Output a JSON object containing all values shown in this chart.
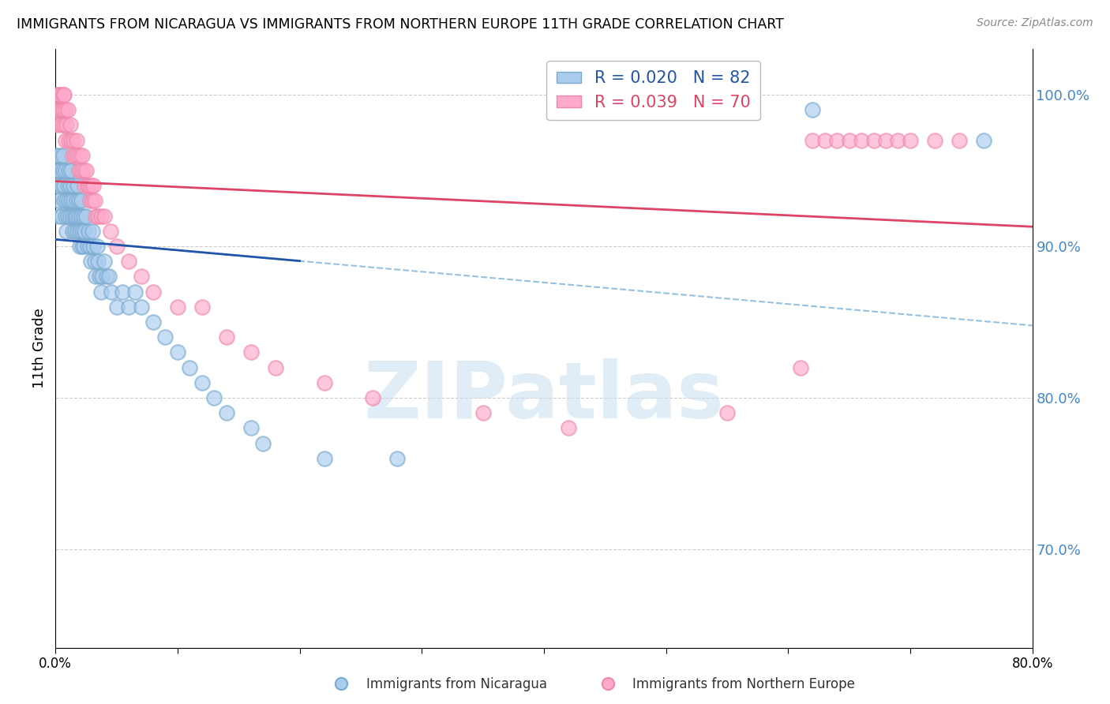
{
  "title": "IMMIGRANTS FROM NICARAGUA VS IMMIGRANTS FROM NORTHERN EUROPE 11TH GRADE CORRELATION CHART",
  "source": "Source: ZipAtlas.com",
  "ylabel": "11th Grade",
  "xlim": [
    0.0,
    0.8
  ],
  "ylim": [
    0.635,
    1.03
  ],
  "ytick_positions": [
    0.7,
    0.8,
    0.9,
    1.0
  ],
  "ytick_labels": [
    "70.0%",
    "80.0%",
    "90.0%",
    "100.0%"
  ],
  "R_blue": 0.02,
  "N_blue": 82,
  "R_pink": 0.039,
  "N_pink": 70,
  "blue_color_face": "#aaccee",
  "blue_color_edge": "#7aaace",
  "pink_color_face": "#ffaacc",
  "pink_color_edge": "#ee88aa",
  "blue_line_color": "#2255aa",
  "pink_line_color": "#dd4466",
  "blue_dash_color": "#88bbdd",
  "watermark": "ZIPatlas",
  "blue_scatter_x": [
    0.001,
    0.002,
    0.002,
    0.003,
    0.003,
    0.004,
    0.004,
    0.005,
    0.005,
    0.006,
    0.006,
    0.007,
    0.007,
    0.008,
    0.008,
    0.009,
    0.009,
    0.01,
    0.01,
    0.011,
    0.011,
    0.012,
    0.012,
    0.013,
    0.013,
    0.014,
    0.014,
    0.015,
    0.015,
    0.016,
    0.016,
    0.017,
    0.017,
    0.018,
    0.018,
    0.019,
    0.019,
    0.02,
    0.02,
    0.021,
    0.021,
    0.022,
    0.022,
    0.023,
    0.023,
    0.024,
    0.025,
    0.026,
    0.027,
    0.028,
    0.029,
    0.03,
    0.031,
    0.032,
    0.033,
    0.034,
    0.035,
    0.036,
    0.037,
    0.038,
    0.04,
    0.042,
    0.044,
    0.046,
    0.05,
    0.055,
    0.06,
    0.065,
    0.07,
    0.08,
    0.09,
    0.1,
    0.11,
    0.12,
    0.13,
    0.14,
    0.16,
    0.17,
    0.22,
    0.28,
    0.62,
    0.76
  ],
  "blue_scatter_y": [
    0.96,
    0.94,
    0.95,
    0.92,
    0.93,
    0.95,
    0.96,
    0.94,
    0.92,
    0.96,
    0.95,
    0.93,
    0.94,
    0.92,
    0.95,
    0.91,
    0.93,
    0.94,
    0.92,
    0.93,
    0.95,
    0.92,
    0.94,
    0.93,
    0.95,
    0.92,
    0.91,
    0.93,
    0.94,
    0.92,
    0.91,
    0.93,
    0.92,
    0.94,
    0.91,
    0.93,
    0.92,
    0.91,
    0.9,
    0.93,
    0.92,
    0.91,
    0.9,
    0.92,
    0.9,
    0.91,
    0.92,
    0.9,
    0.91,
    0.9,
    0.89,
    0.91,
    0.9,
    0.89,
    0.88,
    0.9,
    0.89,
    0.88,
    0.87,
    0.88,
    0.89,
    0.88,
    0.88,
    0.87,
    0.86,
    0.87,
    0.86,
    0.87,
    0.86,
    0.85,
    0.84,
    0.83,
    0.82,
    0.81,
    0.8,
    0.79,
    0.78,
    0.77,
    0.76,
    0.76,
    0.99,
    0.97
  ],
  "pink_scatter_x": [
    0.001,
    0.002,
    0.002,
    0.003,
    0.003,
    0.004,
    0.004,
    0.005,
    0.005,
    0.006,
    0.006,
    0.007,
    0.007,
    0.008,
    0.008,
    0.009,
    0.01,
    0.011,
    0.012,
    0.013,
    0.014,
    0.015,
    0.016,
    0.017,
    0.018,
    0.019,
    0.02,
    0.021,
    0.022,
    0.023,
    0.024,
    0.025,
    0.026,
    0.027,
    0.028,
    0.029,
    0.03,
    0.031,
    0.032,
    0.033,
    0.035,
    0.037,
    0.04,
    0.045,
    0.05,
    0.06,
    0.07,
    0.08,
    0.1,
    0.12,
    0.14,
    0.16,
    0.18,
    0.22,
    0.26,
    0.35,
    0.42,
    0.55,
    0.61,
    0.62,
    0.63,
    0.64,
    0.65,
    0.66,
    0.67,
    0.68,
    0.69,
    0.7,
    0.72,
    0.74
  ],
  "pink_scatter_y": [
    0.98,
    0.99,
    1.0,
    0.99,
    1.0,
    0.99,
    1.0,
    0.98,
    0.99,
    1.0,
    0.99,
    1.0,
    0.98,
    0.99,
    0.97,
    0.98,
    0.99,
    0.97,
    0.98,
    0.97,
    0.96,
    0.97,
    0.96,
    0.97,
    0.96,
    0.95,
    0.96,
    0.95,
    0.96,
    0.95,
    0.94,
    0.95,
    0.94,
    0.94,
    0.93,
    0.94,
    0.93,
    0.94,
    0.93,
    0.92,
    0.92,
    0.92,
    0.92,
    0.91,
    0.9,
    0.89,
    0.88,
    0.87,
    0.86,
    0.86,
    0.84,
    0.83,
    0.82,
    0.81,
    0.8,
    0.79,
    0.78,
    0.79,
    0.82,
    0.97,
    0.97,
    0.97,
    0.97,
    0.97,
    0.97,
    0.97,
    0.97,
    0.97,
    0.97,
    0.97
  ]
}
